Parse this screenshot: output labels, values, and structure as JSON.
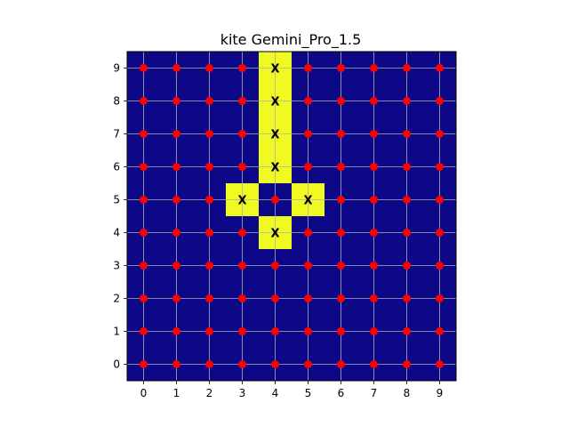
{
  "chart_data": {
    "type": "heatmap",
    "title": "kite Gemini_Pro_1.5",
    "xlabel": "",
    "ylabel": "",
    "x_ticks": [
      0,
      1,
      2,
      3,
      4,
      5,
      6,
      7,
      8,
      9
    ],
    "y_ticks": [
      0,
      1,
      2,
      3,
      4,
      5,
      6,
      7,
      8,
      9
    ],
    "xlim": [
      -0.5,
      9.5
    ],
    "ylim": [
      -0.5,
      9.5
    ],
    "grid": true,
    "colors": {
      "background": "#0d0887",
      "highlight": "#f0f921",
      "point": "#ff0000",
      "grid": "#b0b0b0"
    },
    "highlighted_cells": [
      {
        "x": 4,
        "y": 9
      },
      {
        "x": 4,
        "y": 8
      },
      {
        "x": 4,
        "y": 7
      },
      {
        "x": 4,
        "y": 6
      },
      {
        "x": 3,
        "y": 5
      },
      {
        "x": 5,
        "y": 5
      },
      {
        "x": 4,
        "y": 4
      }
    ],
    "marked_cells": [
      {
        "x": 4,
        "y": 9,
        "label": "X"
      },
      {
        "x": 4,
        "y": 8,
        "label": "X"
      },
      {
        "x": 4,
        "y": 7,
        "label": "X"
      },
      {
        "x": 4,
        "y": 6,
        "label": "X"
      },
      {
        "x": 3,
        "y": 5,
        "label": "X"
      },
      {
        "x": 5,
        "y": 5,
        "label": "X"
      },
      {
        "x": 4,
        "y": 4,
        "label": "X"
      }
    ],
    "points": {
      "rows": [
        0,
        1,
        2,
        3,
        4,
        5,
        6,
        7,
        8,
        9
      ],
      "cols": [
        0,
        1,
        2,
        3,
        4,
        5,
        6,
        7,
        8,
        9
      ],
      "omitted": [
        {
          "x": 4,
          "y": 9
        },
        {
          "x": 4,
          "y": 8
        },
        {
          "x": 4,
          "y": 7
        },
        {
          "x": 4,
          "y": 6
        },
        {
          "x": 3,
          "y": 5
        },
        {
          "x": 5,
          "y": 5
        },
        {
          "x": 4,
          "y": 4
        }
      ]
    }
  }
}
